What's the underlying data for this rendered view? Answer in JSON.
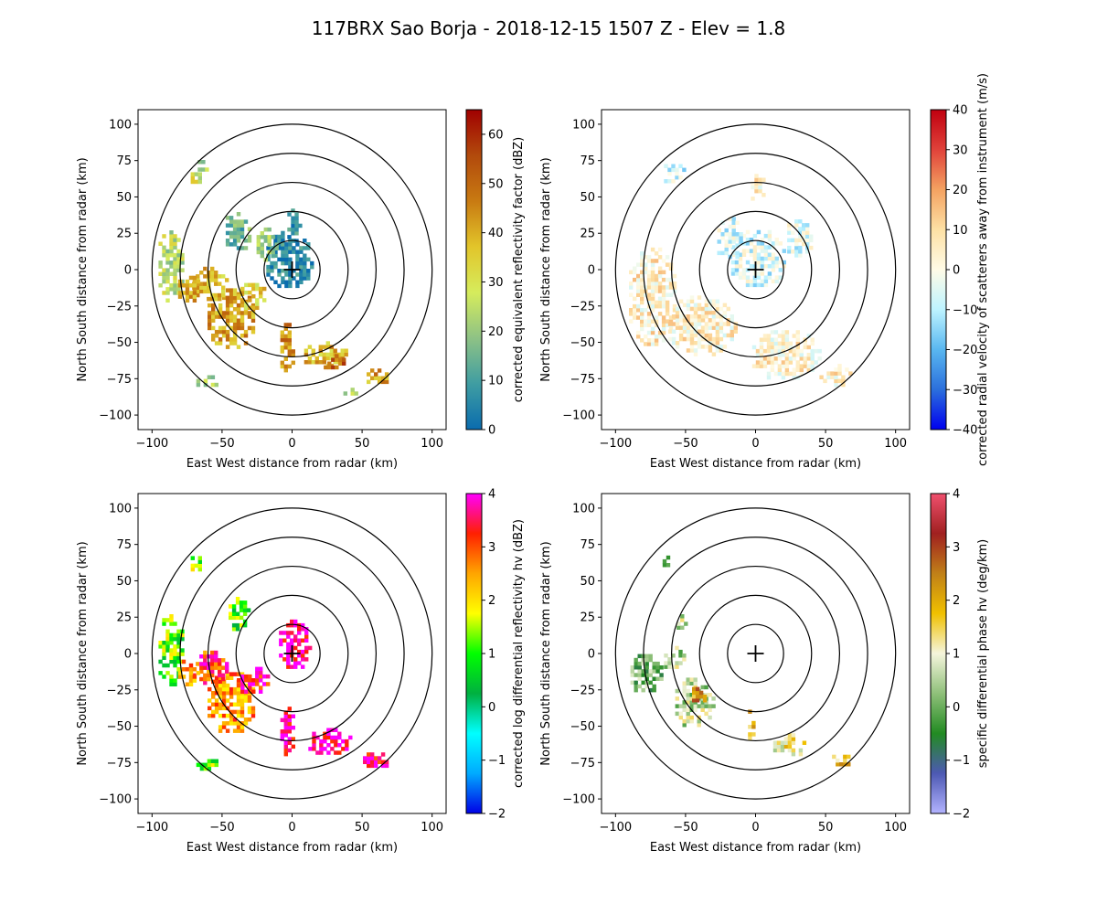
{
  "title": "117BRX Sao Borja - 2018-12-15 1507 Z -  Elev = 1.8",
  "chart_data": [
    {
      "type": "heatmap",
      "panel": "top-left",
      "xlabel": "East West distance from radar (km)",
      "ylabel": "North South distance from radar (km)",
      "xlim": [
        -110,
        110
      ],
      "ylim": [
        -110,
        110
      ],
      "xticks": [
        -100,
        -50,
        0,
        50,
        100
      ],
      "yticks": [
        -100,
        -75,
        -50,
        -25,
        0,
        25,
        50,
        75,
        100
      ],
      "range_rings_km": [
        20,
        40,
        60,
        80,
        100
      ],
      "colorbar": {
        "label": "corrected equivalent reflectivity factor (dBZ)",
        "min": 0,
        "max": 65,
        "ticks": [
          0,
          10,
          20,
          30,
          40,
          50,
          60
        ],
        "colors": [
          "#0a6cae",
          "#3f9da2",
          "#8ec285",
          "#d6ec5c",
          "#e2c52a",
          "#c87a12",
          "#b24a0c",
          "#a00000"
        ]
      },
      "echoes": [
        {
          "x": -3,
          "y": 5,
          "rx": 18,
          "ry": 20,
          "v": 5
        },
        {
          "x": 0,
          "y": 28,
          "rx": 6,
          "ry": 12,
          "v": 7
        },
        {
          "x": -45,
          "y": -35,
          "rx": 18,
          "ry": 22,
          "v": 42
        },
        {
          "x": -60,
          "y": -12,
          "rx": 14,
          "ry": 12,
          "v": 38
        },
        {
          "x": -30,
          "y": -20,
          "rx": 12,
          "ry": 10,
          "v": 35
        },
        {
          "x": -88,
          "y": 0,
          "rx": 10,
          "ry": 25,
          "v": 25
        },
        {
          "x": -75,
          "y": -15,
          "rx": 9,
          "ry": 10,
          "v": 40
        },
        {
          "x": -5,
          "y": -55,
          "rx": 6,
          "ry": 18,
          "v": 45
        },
        {
          "x": 22,
          "y": -60,
          "rx": 16,
          "ry": 10,
          "v": 38
        },
        {
          "x": 28,
          "y": -65,
          "rx": 8,
          "ry": 6,
          "v": 52
        },
        {
          "x": 58,
          "y": -75,
          "rx": 10,
          "ry": 6,
          "v": 42
        },
        {
          "x": -70,
          "y": 60,
          "rx": 5,
          "ry": 6,
          "v": 28
        },
        {
          "x": -65,
          "y": 70,
          "rx": 5,
          "ry": 5,
          "v": 20
        },
        {
          "x": -40,
          "y": 25,
          "rx": 10,
          "ry": 14,
          "v": 15
        },
        {
          "x": -20,
          "y": 15,
          "rx": 8,
          "ry": 12,
          "v": 20
        },
        {
          "x": -62,
          "y": -78,
          "rx": 9,
          "ry": 5,
          "v": 22
        },
        {
          "x": 40,
          "y": -85,
          "rx": 6,
          "ry": 4,
          "v": 25
        }
      ]
    },
    {
      "type": "heatmap",
      "panel": "top-right",
      "xlabel": "East West distance from radar (km)",
      "ylabel": "North South distance from radar (km)",
      "xlim": [
        -110,
        110
      ],
      "ylim": [
        -110,
        110
      ],
      "xticks": [
        -100,
        -50,
        0,
        50,
        100
      ],
      "yticks": [
        -100,
        -75,
        -50,
        -25,
        0,
        25,
        50,
        75,
        100
      ],
      "range_rings_km": [
        20,
        40,
        60,
        80,
        100
      ],
      "colorbar": {
        "label": "corrected radial velocity of scatterers away from instrument (m/s)",
        "min": -40,
        "max": 40,
        "ticks": [
          -40,
          -30,
          -20,
          -10,
          0,
          10,
          20,
          30,
          40
        ],
        "colors": [
          "#0000ee",
          "#2b6fdc",
          "#59b7f0",
          "#bdf3ff",
          "#fffbe6",
          "#fde0a4",
          "#f4a261",
          "#e0423a",
          "#c00010"
        ]
      },
      "echoes": [
        {
          "x": 0,
          "y": 5,
          "rx": 20,
          "ry": 22,
          "v": -6
        },
        {
          "x": -75,
          "y": -20,
          "rx": 18,
          "ry": 35,
          "v": 5
        },
        {
          "x": -40,
          "y": -40,
          "rx": 25,
          "ry": 22,
          "v": 4
        },
        {
          "x": 20,
          "y": -60,
          "rx": 25,
          "ry": 18,
          "v": 4
        },
        {
          "x": -20,
          "y": 20,
          "rx": 10,
          "ry": 15,
          "v": -7
        },
        {
          "x": 55,
          "y": -75,
          "rx": 12,
          "ry": 8,
          "v": 5
        },
        {
          "x": -60,
          "y": 65,
          "rx": 8,
          "ry": 8,
          "v": -9
        },
        {
          "x": 0,
          "y": 55,
          "rx": 6,
          "ry": 10,
          "v": 4
        },
        {
          "x": 30,
          "y": 20,
          "rx": 10,
          "ry": 14,
          "v": -5
        }
      ]
    },
    {
      "type": "heatmap",
      "panel": "bottom-left",
      "xlabel": "East West distance from radar (km)",
      "ylabel": "North South distance from radar (km)",
      "xlim": [
        -110,
        110
      ],
      "ylim": [
        -110,
        110
      ],
      "xticks": [
        -100,
        -50,
        0,
        50,
        100
      ],
      "yticks": [
        -100,
        -75,
        -50,
        -25,
        0,
        25,
        50,
        75,
        100
      ],
      "range_rings_km": [
        20,
        40,
        60,
        80,
        100
      ],
      "colorbar": {
        "label": "corrected log differential reflectivity hv (dBZ)",
        "min": -2,
        "max": 4,
        "ticks": [
          -2,
          -1,
          0,
          1,
          2,
          3,
          4
        ],
        "colors": [
          "#0000e6",
          "#00aaff",
          "#00ffff",
          "#00b040",
          "#00ff00",
          "#ffff00",
          "#ffa500",
          "#ff2000",
          "#ff00ff"
        ]
      },
      "echoes": [
        {
          "x": 0,
          "y": 5,
          "rx": 12,
          "ry": 18,
          "v": 3.9
        },
        {
          "x": -45,
          "y": -35,
          "rx": 18,
          "ry": 22,
          "v": 2.6
        },
        {
          "x": -60,
          "y": -12,
          "rx": 14,
          "ry": 12,
          "v": 3.2
        },
        {
          "x": -30,
          "y": -20,
          "rx": 12,
          "ry": 10,
          "v": 3.6
        },
        {
          "x": -88,
          "y": 0,
          "rx": 10,
          "ry": 25,
          "v": 1.2
        },
        {
          "x": -75,
          "y": -15,
          "rx": 9,
          "ry": 10,
          "v": 2.5
        },
        {
          "x": -5,
          "y": -55,
          "rx": 6,
          "ry": 18,
          "v": 3.8
        },
        {
          "x": 25,
          "y": -62,
          "rx": 16,
          "ry": 10,
          "v": 3.9
        },
        {
          "x": 58,
          "y": -75,
          "rx": 10,
          "ry": 6,
          "v": 3.7
        },
        {
          "x": -70,
          "y": 60,
          "rx": 5,
          "ry": 6,
          "v": 1.5
        },
        {
          "x": -40,
          "y": 25,
          "rx": 8,
          "ry": 12,
          "v": 1.0
        },
        {
          "x": -62,
          "y": -78,
          "rx": 9,
          "ry": 5,
          "v": 1.3
        }
      ]
    },
    {
      "type": "heatmap",
      "panel": "bottom-right",
      "xlabel": "East West distance from radar (km)",
      "ylabel": "North South distance from radar (km)",
      "xlim": [
        -110,
        110
      ],
      "ylim": [
        -110,
        110
      ],
      "xticks": [
        -100,
        -50,
        0,
        50,
        100
      ],
      "yticks": [
        -100,
        -75,
        -50,
        -25,
        0,
        25,
        50,
        75,
        100
      ],
      "range_rings_km": [
        20,
        40,
        60,
        80,
        100
      ],
      "colorbar": {
        "label": "specific differential phase hv (deg/km)",
        "min": -2,
        "max": 4,
        "ticks": [
          -2,
          -1,
          0,
          1,
          2,
          3,
          4
        ],
        "colors": [
          "#b3b3ff",
          "#4d59b3",
          "#228b22",
          "#8fc07a",
          "#f5f5dc",
          "#f0c000",
          "#c08018",
          "#a02020",
          "#f0506e"
        ]
      },
      "echoes": [
        {
          "x": -45,
          "y": -35,
          "rx": 15,
          "ry": 18,
          "v": 0.6
        },
        {
          "x": -42,
          "y": -30,
          "rx": 6,
          "ry": 6,
          "v": 2.2
        },
        {
          "x": -80,
          "y": -15,
          "rx": 12,
          "ry": 14,
          "v": 0.1
        },
        {
          "x": -60,
          "y": -5,
          "rx": 8,
          "ry": 8,
          "v": 0.5
        },
        {
          "x": -5,
          "y": -50,
          "rx": 3,
          "ry": 12,
          "v": 2.0
        },
        {
          "x": 22,
          "y": -65,
          "rx": 12,
          "ry": 8,
          "v": 1.2
        },
        {
          "x": 60,
          "y": -75,
          "rx": 8,
          "ry": 5,
          "v": 1.6
        },
        {
          "x": -65,
          "y": 62,
          "rx": 4,
          "ry": 5,
          "v": 0.4
        },
        {
          "x": -55,
          "y": 20,
          "rx": 4,
          "ry": 6,
          "v": 0.8
        }
      ]
    }
  ]
}
